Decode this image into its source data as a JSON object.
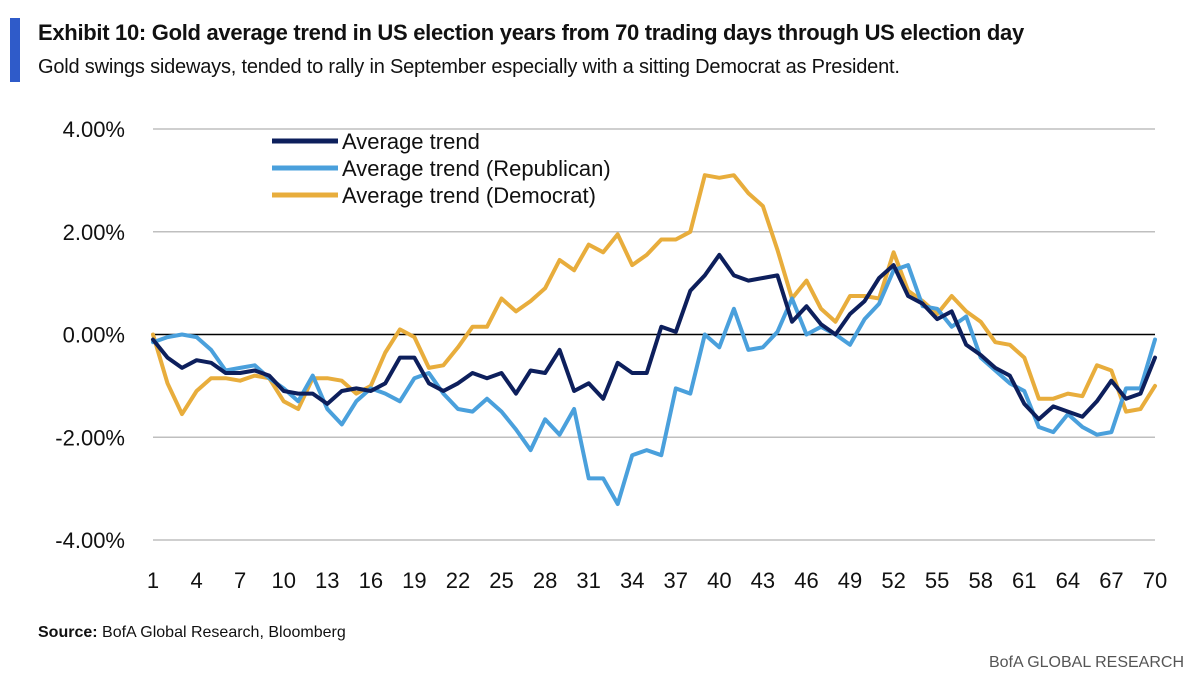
{
  "header": {
    "title": "Exhibit 10: Gold average trend in US election years from 70 trading days through US election day",
    "subtitle": "Gold swings sideways, tended to rally in September especially with a sitting Democrat as President."
  },
  "footer": {
    "source_label": "Source:",
    "source_text": " BofA Global Research, Bloomberg",
    "brand": "BofA GLOBAL RESEARCH"
  },
  "colors": {
    "accent_bar": "#2f5bc9",
    "grid": "#bfbfbf",
    "zero_line": "#000000"
  },
  "chart_data": {
    "type": "line",
    "title": "",
    "xlabel": "",
    "ylabel": "",
    "x": [
      1,
      2,
      3,
      4,
      5,
      6,
      7,
      8,
      9,
      10,
      11,
      12,
      13,
      14,
      15,
      16,
      17,
      18,
      19,
      20,
      21,
      22,
      23,
      24,
      25,
      26,
      27,
      28,
      29,
      30,
      31,
      32,
      33,
      34,
      35,
      36,
      37,
      38,
      39,
      40,
      41,
      42,
      43,
      44,
      45,
      46,
      47,
      48,
      49,
      50,
      51,
      52,
      53,
      54,
      55,
      56,
      57,
      58,
      59,
      60,
      61,
      62,
      63,
      64,
      65,
      66,
      67,
      68,
      69,
      70
    ],
    "x_ticks": [
      "1",
      "4",
      "7",
      "10",
      "13",
      "16",
      "19",
      "22",
      "25",
      "28",
      "31",
      "34",
      "37",
      "40",
      "43",
      "46",
      "49",
      "52",
      "55",
      "58",
      "61",
      "64",
      "67",
      "70"
    ],
    "x_tick_values": [
      1,
      4,
      7,
      10,
      13,
      16,
      19,
      22,
      25,
      28,
      31,
      34,
      37,
      40,
      43,
      46,
      49,
      52,
      55,
      58,
      61,
      64,
      67,
      70
    ],
    "xlim": [
      1,
      70
    ],
    "ylim": [
      -0.04,
      0.04
    ],
    "y_ticks": [
      0.04,
      0.02,
      0,
      -0.02,
      -0.04
    ],
    "y_tick_labels": [
      "4.00%",
      "2.00%",
      "0.00%",
      "-2.00%",
      "-4.00%"
    ],
    "grid": true,
    "legend_position": "top-left",
    "series": [
      {
        "name": "Average trend",
        "color": "#0d1f5c",
        "values": [
          -0.001,
          -0.0045,
          -0.0065,
          -0.005,
          -0.0055,
          -0.0075,
          -0.0075,
          -0.007,
          -0.008,
          -0.011,
          -0.0115,
          -0.0115,
          -0.0135,
          -0.011,
          -0.0105,
          -0.011,
          -0.0095,
          -0.0045,
          -0.0045,
          -0.0095,
          -0.011,
          -0.0095,
          -0.0075,
          -0.0085,
          -0.0075,
          -0.0115,
          -0.007,
          -0.0075,
          -0.003,
          -0.011,
          -0.0095,
          -0.0125,
          -0.0055,
          -0.0075,
          -0.0075,
          0.0015,
          0.0005,
          0.0085,
          0.0115,
          0.0155,
          0.0115,
          0.0105,
          0.011,
          0.0115,
          0.0025,
          0.0055,
          0.002,
          0,
          0.004,
          0.0065,
          0.011,
          0.0135,
          0.0075,
          0.006,
          0.003,
          0.0045,
          -0.002,
          -0.004,
          -0.0065,
          -0.008,
          -0.0135,
          -0.0165,
          -0.014,
          -0.015,
          -0.016,
          -0.013,
          -0.009,
          -0.0125,
          -0.0115,
          -0.0045
        ]
      },
      {
        "name": "Average trend (Republican)",
        "color": "#4aa0dc",
        "values": [
          -0.0015,
          -0.0005,
          0,
          -0.0005,
          -0.003,
          -0.007,
          -0.0065,
          -0.006,
          -0.0085,
          -0.0105,
          -0.013,
          -0.008,
          -0.0145,
          -0.0175,
          -0.013,
          -0.0105,
          -0.0115,
          -0.013,
          -0.0085,
          -0.0075,
          -0.0115,
          -0.0145,
          -0.015,
          -0.0125,
          -0.015,
          -0.0185,
          -0.0225,
          -0.0165,
          -0.0195,
          -0.0145,
          -0.028,
          -0.028,
          -0.033,
          -0.0235,
          -0.0225,
          -0.0235,
          -0.0105,
          -0.0115,
          0,
          -0.0025,
          0.005,
          -0.003,
          -0.0025,
          0.0005,
          0.007,
          0,
          0.0015,
          0,
          -0.002,
          0.003,
          0.006,
          0.0125,
          0.0135,
          0.0055,
          0.005,
          0.0015,
          0.0035,
          -0.0045,
          -0.007,
          -0.0095,
          -0.011,
          -0.018,
          -0.019,
          -0.0155,
          -0.018,
          -0.0195,
          -0.019,
          -0.0105,
          -0.0105,
          -0.001
        ]
      },
      {
        "name": "Average trend (Democrat)",
        "color": "#e8ad3c",
        "values": [
          0,
          -0.0095,
          -0.0155,
          -0.011,
          -0.0085,
          -0.0085,
          -0.009,
          -0.008,
          -0.0085,
          -0.013,
          -0.0145,
          -0.0085,
          -0.0085,
          -0.009,
          -0.0115,
          -0.01,
          -0.0035,
          0.001,
          -0.0005,
          -0.0065,
          -0.006,
          -0.0025,
          0.0015,
          0.0015,
          0.007,
          0.0045,
          0.0065,
          0.009,
          0.0145,
          0.0125,
          0.0175,
          0.016,
          0.0195,
          0.0135,
          0.0155,
          0.0185,
          0.0185,
          0.02,
          0.031,
          0.0305,
          0.031,
          0.0275,
          0.025,
          0.0165,
          0.007,
          0.0105,
          0.005,
          0.0025,
          0.0075,
          0.0075,
          0.007,
          0.016,
          0.0085,
          0.0065,
          0.004,
          0.0075,
          0.0045,
          0.0025,
          -0.0015,
          -0.002,
          -0.0045,
          -0.0125,
          -0.0125,
          -0.0115,
          -0.012,
          -0.006,
          -0.007,
          -0.015,
          -0.0145,
          -0.01
        ]
      }
    ]
  }
}
